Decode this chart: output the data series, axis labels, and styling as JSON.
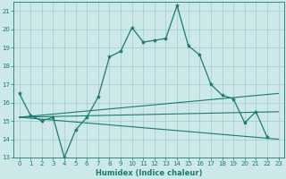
{
  "xlabel": "Humidex (Indice chaleur)",
  "x_values": [
    0,
    1,
    2,
    3,
    4,
    5,
    6,
    7,
    8,
    9,
    10,
    11,
    12,
    13,
    14,
    15,
    16,
    17,
    18,
    19,
    20,
    21,
    22,
    23
  ],
  "line1": [
    16.5,
    15.3,
    15.0,
    15.2,
    13.0,
    14.5,
    15.2,
    16.3,
    18.5,
    18.8,
    20.1,
    19.3,
    19.4,
    19.5,
    21.3,
    19.1,
    18.6,
    17.0,
    16.4,
    16.2,
    14.9,
    15.5,
    14.1,
    null
  ],
  "trend_lines": [
    [
      15.2,
      16.5
    ],
    [
      15.2,
      15.5
    ],
    [
      15.2,
      14.0
    ]
  ],
  "ylim": [
    13,
    21.5
  ],
  "xlim": [
    -0.5,
    23.5
  ],
  "yticks": [
    13,
    14,
    15,
    16,
    17,
    18,
    19,
    20,
    21
  ],
  "xticks": [
    0,
    1,
    2,
    3,
    4,
    5,
    6,
    7,
    8,
    9,
    10,
    11,
    12,
    13,
    14,
    15,
    16,
    17,
    18,
    19,
    20,
    21,
    22,
    23
  ],
  "line_color": "#1a7a6e",
  "bg_color": "#cde8e8",
  "grid_color": "#a0cccc"
}
